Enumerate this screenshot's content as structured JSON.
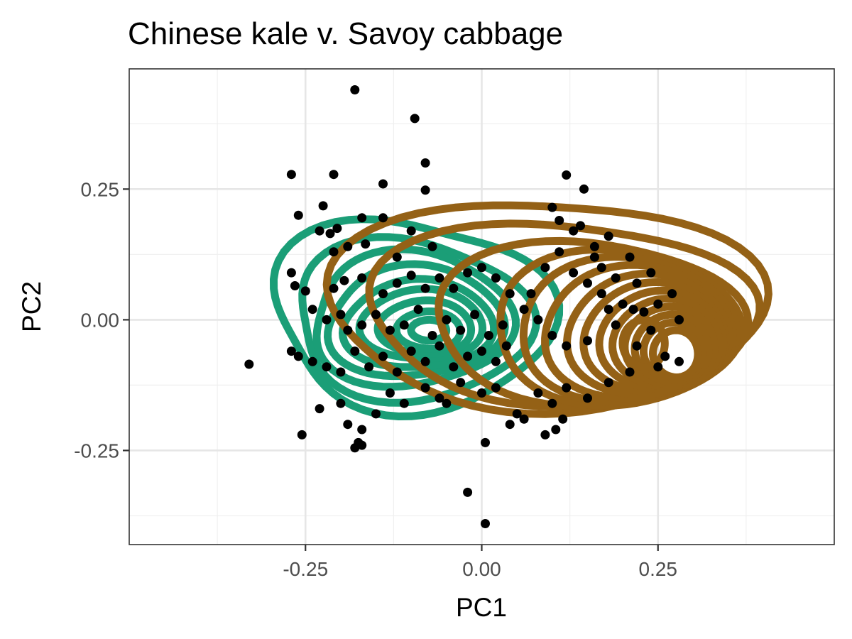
{
  "chart_data": {
    "type": "scatter",
    "title": "Chinese kale v. Savoy cabbage",
    "xlabel": "PC1",
    "ylabel": "PC2",
    "xlim": [
      -0.5,
      0.5
    ],
    "ylim": [
      -0.43,
      0.48
    ],
    "x_ticks": [
      -0.25,
      0.0,
      0.25
    ],
    "y_ticks": [
      -0.25,
      0.0,
      0.25
    ],
    "x_tick_labels": [
      "-0.25",
      "0.00",
      "0.25"
    ],
    "y_tick_labels": [
      "-0.25",
      "0.00",
      "0.25"
    ],
    "grid": true,
    "legend": "none",
    "point_color": "#000000",
    "points": [
      [
        -0.18,
        0.44
      ],
      [
        -0.095,
        0.385
      ],
      [
        -0.08,
        0.3
      ],
      [
        -0.27,
        0.278
      ],
      [
        -0.21,
        0.278
      ],
      [
        -0.14,
        0.26
      ],
      [
        -0.08,
        0.248
      ],
      [
        -0.26,
        0.2
      ],
      [
        -0.225,
        0.218
      ],
      [
        -0.23,
        0.17
      ],
      [
        -0.205,
        0.175
      ],
      [
        -0.215,
        0.165
      ],
      [
        -0.17,
        0.195
      ],
      [
        -0.14,
        0.195
      ],
      [
        -0.21,
        0.13
      ],
      [
        -0.19,
        0.14
      ],
      [
        -0.165,
        0.145
      ],
      [
        -0.12,
        0.12
      ],
      [
        -0.1,
        0.17
      ],
      [
        -0.07,
        0.14
      ],
      [
        -0.27,
        0.09
      ],
      [
        -0.265,
        0.065
      ],
      [
        -0.25,
        0.055
      ],
      [
        -0.21,
        0.06
      ],
      [
        -0.195,
        0.075
      ],
      [
        -0.17,
        0.08
      ],
      [
        -0.14,
        0.05
      ],
      [
        -0.12,
        0.07
      ],
      [
        -0.1,
        0.085
      ],
      [
        -0.08,
        0.06
      ],
      [
        -0.06,
        0.08
      ],
      [
        -0.04,
        0.06
      ],
      [
        -0.02,
        0.09
      ],
      [
        0.0,
        0.1
      ],
      [
        0.02,
        0.08
      ],
      [
        0.04,
        0.05
      ],
      [
        -0.24,
        0.02
      ],
      [
        -0.22,
        0.0
      ],
      [
        -0.2,
        0.01
      ],
      [
        -0.19,
        -0.02
      ],
      [
        -0.17,
        -0.01
      ],
      [
        -0.15,
        0.01
      ],
      [
        -0.13,
        -0.02
      ],
      [
        -0.11,
        -0.01
      ],
      [
        -0.09,
        0.02
      ],
      [
        -0.07,
        -0.03
      ],
      [
        -0.05,
        0.0
      ],
      [
        -0.03,
        -0.02
      ],
      [
        -0.01,
        0.01
      ],
      [
        0.01,
        -0.03
      ],
      [
        0.03,
        -0.01
      ],
      [
        -0.33,
        -0.085
      ],
      [
        -0.27,
        -0.06
      ],
      [
        -0.26,
        -0.07
      ],
      [
        -0.24,
        -0.08
      ],
      [
        -0.22,
        -0.09
      ],
      [
        -0.2,
        -0.1
      ],
      [
        -0.18,
        -0.06
      ],
      [
        -0.16,
        -0.09
      ],
      [
        -0.14,
        -0.07
      ],
      [
        -0.12,
        -0.1
      ],
      [
        -0.1,
        -0.06
      ],
      [
        -0.08,
        -0.08
      ],
      [
        -0.06,
        -0.05
      ],
      [
        -0.04,
        -0.09
      ],
      [
        -0.02,
        -0.07
      ],
      [
        0.0,
        -0.06
      ],
      [
        0.02,
        -0.08
      ],
      [
        0.035,
        -0.05
      ],
      [
        -0.23,
        -0.17
      ],
      [
        -0.2,
        -0.16
      ],
      [
        -0.19,
        -0.2
      ],
      [
        -0.17,
        -0.21
      ],
      [
        -0.15,
        -0.18
      ],
      [
        -0.13,
        -0.14
      ],
      [
        -0.11,
        -0.16
      ],
      [
        -0.08,
        -0.13
      ],
      [
        -0.06,
        -0.15
      ],
      [
        -0.05,
        -0.16
      ],
      [
        -0.03,
        -0.12
      ],
      [
        0.0,
        -0.14
      ],
      [
        0.02,
        -0.13
      ],
      [
        -0.255,
        -0.22
      ],
      [
        -0.175,
        -0.235
      ],
      [
        -0.18,
        -0.245
      ],
      [
        -0.17,
        -0.24
      ],
      [
        0.005,
        -0.235
      ],
      [
        -0.02,
        -0.33
      ],
      [
        0.005,
        -0.39
      ],
      [
        0.12,
        0.277
      ],
      [
        0.145,
        0.25
      ],
      [
        0.1,
        0.215
      ],
      [
        0.11,
        0.19
      ],
      [
        0.14,
        0.18
      ],
      [
        0.13,
        0.17
      ],
      [
        0.16,
        0.14
      ],
      [
        0.11,
        0.13
      ],
      [
        0.09,
        0.1
      ],
      [
        0.13,
        0.09
      ],
      [
        0.15,
        0.07
      ],
      [
        0.17,
        0.05
      ],
      [
        0.18,
        0.02
      ],
      [
        0.07,
        0.05
      ],
      [
        0.06,
        0.02
      ],
      [
        0.08,
        0.0
      ],
      [
        0.1,
        -0.03
      ],
      [
        0.12,
        -0.05
      ],
      [
        0.15,
        -0.04
      ],
      [
        0.19,
        -0.01
      ],
      [
        0.2,
        0.03
      ],
      [
        0.215,
        0.02
      ],
      [
        0.23,
        0.015
      ],
      [
        0.25,
        0.03
      ],
      [
        0.27,
        0.05
      ],
      [
        0.28,
        0.0
      ],
      [
        0.24,
        -0.02
      ],
      [
        0.22,
        -0.05
      ],
      [
        0.26,
        -0.07
      ],
      [
        0.28,
        -0.08
      ],
      [
        0.25,
        -0.09
      ],
      [
        0.21,
        -0.1
      ],
      [
        0.18,
        -0.12
      ],
      [
        0.15,
        -0.15
      ],
      [
        0.12,
        -0.13
      ],
      [
        0.1,
        -0.16
      ],
      [
        0.08,
        -0.14
      ],
      [
        0.06,
        -0.19
      ],
      [
        0.05,
        -0.18
      ],
      [
        0.04,
        -0.2
      ],
      [
        0.115,
        -0.19
      ],
      [
        0.105,
        -0.21
      ],
      [
        0.09,
        -0.22
      ],
      [
        0.17,
        0.1
      ],
      [
        0.19,
        0.08
      ],
      [
        0.22,
        0.07
      ],
      [
        0.24,
        0.09
      ],
      [
        0.21,
        0.12
      ],
      [
        0.18,
        0.16
      ],
      [
        0.16,
        0.12
      ]
    ],
    "series": [
      {
        "color": "#1b9e77",
        "levels": [
          {
            "cx": -0.1,
            "cy": 0.01,
            "rx": 0.195,
            "ry": 0.185,
            "wobble": 0.09,
            "phase": 0.8
          },
          {
            "cx": -0.1,
            "cy": 0.0,
            "rx": 0.17,
            "ry": 0.15,
            "wobble": 0.08,
            "phase": 1.4
          },
          {
            "cx": -0.1,
            "cy": 0.0,
            "rx": 0.145,
            "ry": 0.125,
            "wobble": 0.07,
            "phase": 2.1
          },
          {
            "cx": -0.095,
            "cy": -0.005,
            "rx": 0.125,
            "ry": 0.105,
            "wobble": 0.06,
            "phase": 2.6
          },
          {
            "cx": -0.09,
            "cy": -0.01,
            "rx": 0.105,
            "ry": 0.085,
            "wobble": 0.05,
            "phase": 3.0
          },
          {
            "cx": -0.085,
            "cy": -0.01,
            "rx": 0.085,
            "ry": 0.068,
            "wobble": 0.04,
            "phase": 3.5
          },
          {
            "cx": -0.08,
            "cy": -0.015,
            "rx": 0.065,
            "ry": 0.052,
            "wobble": 0.03,
            "phase": 3.9
          },
          {
            "cx": -0.075,
            "cy": -0.02,
            "rx": 0.045,
            "ry": 0.036,
            "wobble": 0.02,
            "phase": 4.2
          },
          {
            "cx": -0.075,
            "cy": -0.02,
            "rx": 0.025,
            "ry": 0.02,
            "wobble": 0.01,
            "phase": 4.5
          }
        ]
      },
      {
        "color": "#946116",
        "levels": [
          {
            "cx": 0.09,
            "cy": 0.03,
            "rx": 0.3,
            "ry": 0.205,
            "wobble": 0.06,
            "phase": 0.3
          },
          {
            "cx": 0.11,
            "cy": 0.015,
            "rx": 0.27,
            "ry": 0.175,
            "wobble": 0.06,
            "phase": 0.7
          },
          {
            "cx": 0.15,
            "cy": -0.005,
            "rx": 0.22,
            "ry": 0.155,
            "wobble": 0.05,
            "phase": 1.1
          },
          {
            "cx": 0.19,
            "cy": -0.015,
            "rx": 0.175,
            "ry": 0.145,
            "wobble": 0.045,
            "phase": 1.5
          },
          {
            "cx": 0.205,
            "cy": -0.02,
            "rx": 0.155,
            "ry": 0.135,
            "wobble": 0.04,
            "phase": 1.9
          },
          {
            "cx": 0.22,
            "cy": -0.025,
            "rx": 0.135,
            "ry": 0.125,
            "wobble": 0.035,
            "phase": 2.3
          },
          {
            "cx": 0.235,
            "cy": -0.03,
            "rx": 0.115,
            "ry": 0.115,
            "wobble": 0.03,
            "phase": 2.7
          },
          {
            "cx": 0.245,
            "cy": -0.035,
            "rx": 0.1,
            "ry": 0.105,
            "wobble": 0.025,
            "phase": 3.0
          },
          {
            "cx": 0.255,
            "cy": -0.04,
            "rx": 0.087,
            "ry": 0.095,
            "wobble": 0.02,
            "phase": 3.3
          },
          {
            "cx": 0.262,
            "cy": -0.045,
            "rx": 0.075,
            "ry": 0.085,
            "wobble": 0.02,
            "phase": 3.6
          },
          {
            "cx": 0.267,
            "cy": -0.05,
            "rx": 0.063,
            "ry": 0.075,
            "wobble": 0.015,
            "phase": 3.9
          },
          {
            "cx": 0.27,
            "cy": -0.055,
            "rx": 0.052,
            "ry": 0.065,
            "wobble": 0.015,
            "phase": 4.2
          },
          {
            "cx": 0.272,
            "cy": -0.06,
            "rx": 0.042,
            "ry": 0.055,
            "wobble": 0.01,
            "phase": 4.5
          },
          {
            "cx": 0.275,
            "cy": -0.065,
            "rx": 0.032,
            "ry": 0.045,
            "wobble": 0.01,
            "phase": 4.8
          },
          {
            "cx": 0.23,
            "cy": -0.045,
            "rx": 0.03,
            "ry": 0.045,
            "wobble": 0.01,
            "phase": 5.0
          }
        ]
      }
    ]
  }
}
